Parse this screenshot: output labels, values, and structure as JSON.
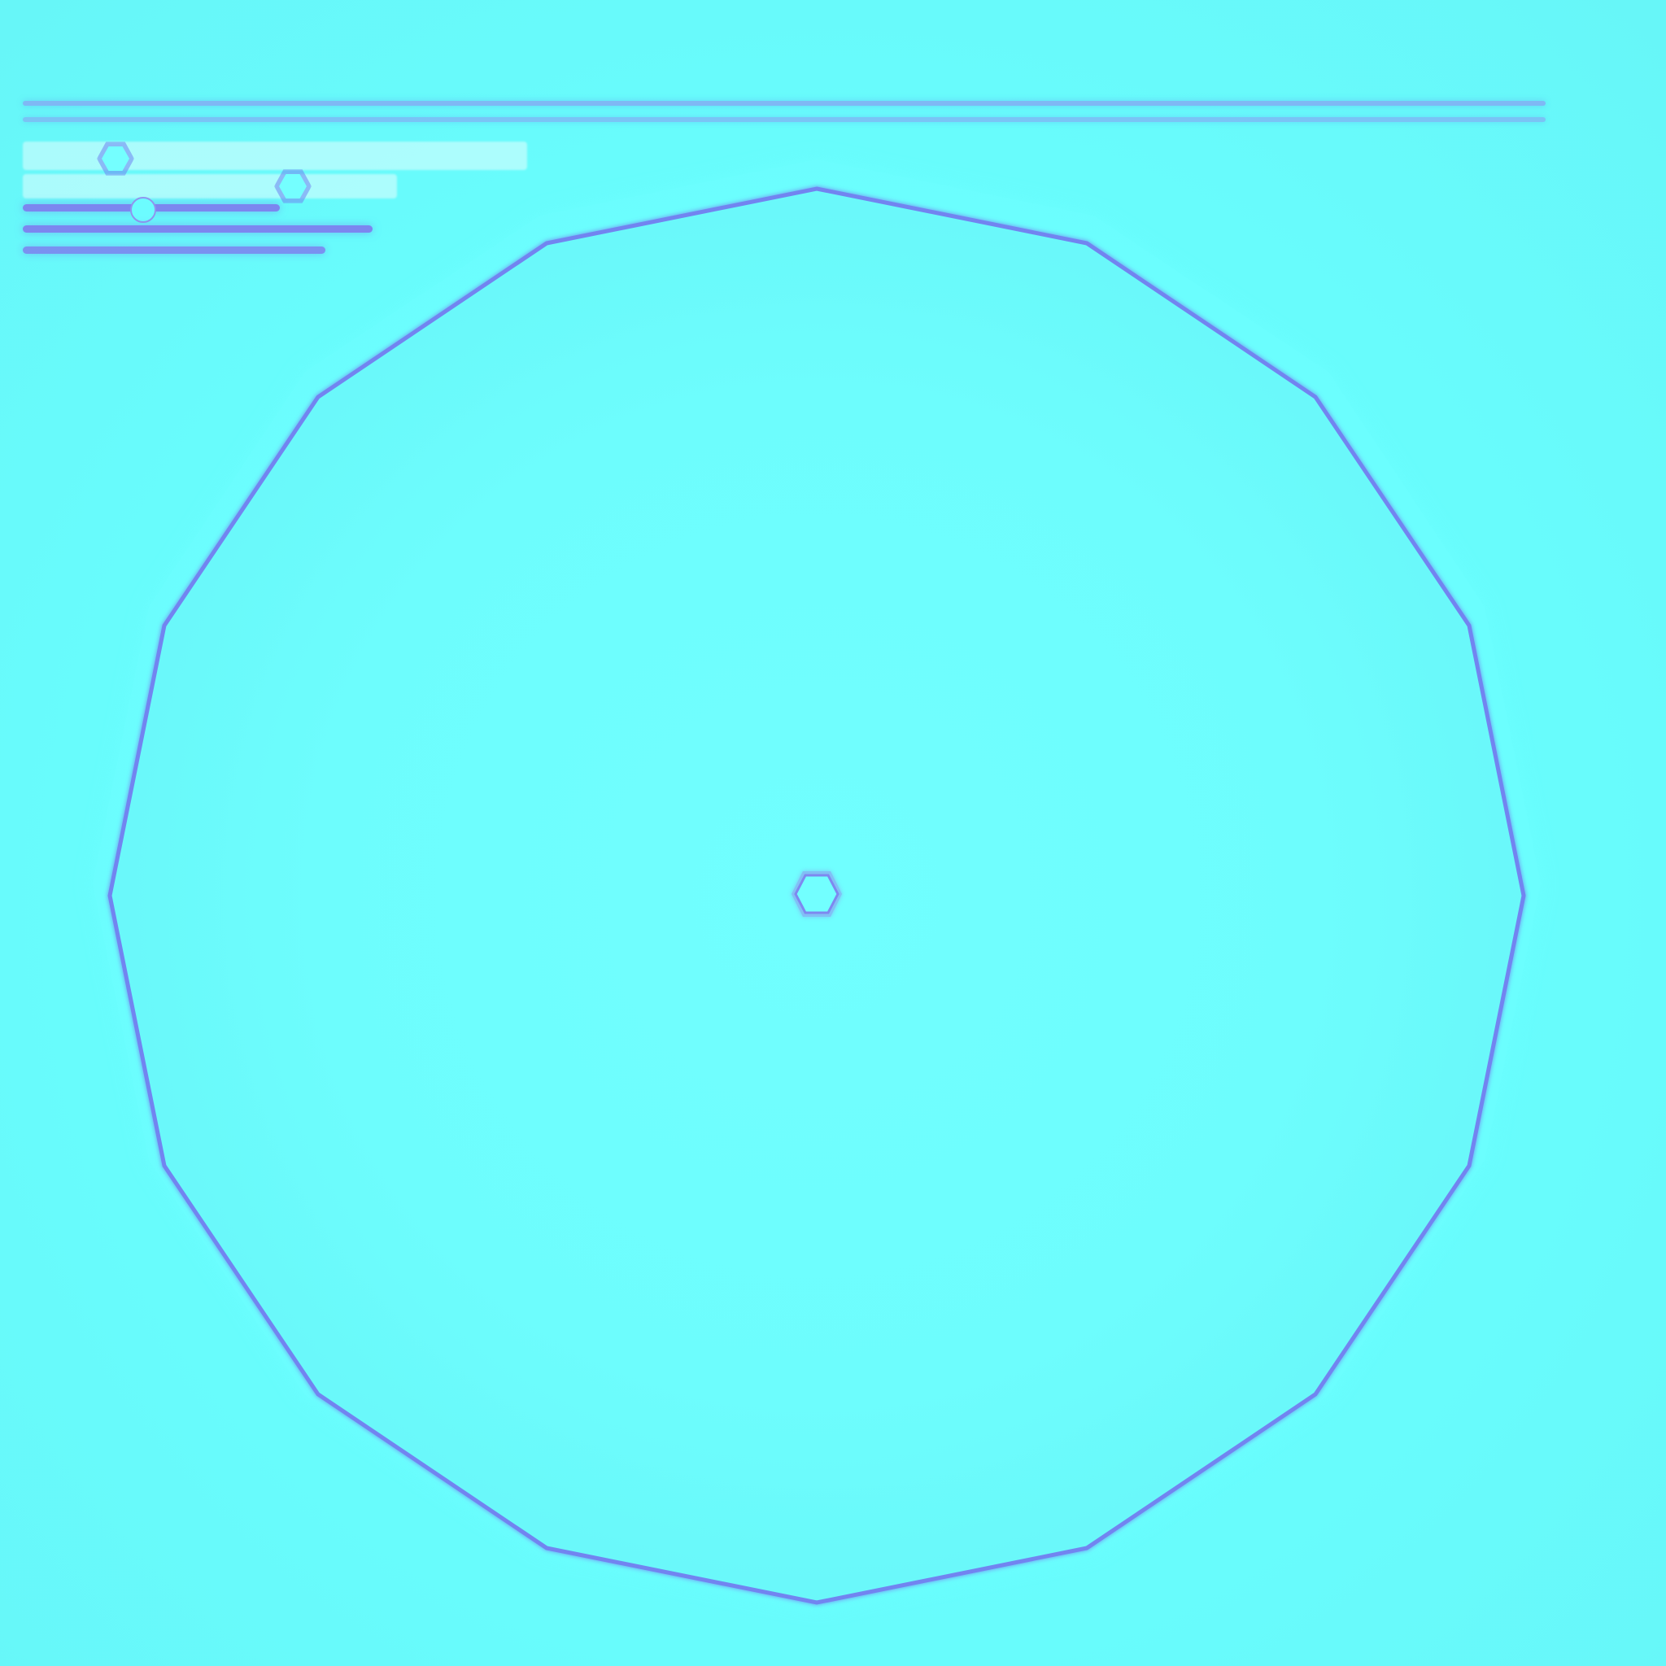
{
  "canvas": {
    "background": "#68f9f9",
    "outline_color": "#7284f0",
    "ring_glow": "#6effff"
  },
  "top_controls": {
    "title_icon": "hexagon-icon",
    "secondary_icon": "hexagon-icon",
    "slider_1": {
      "value": 0.42
    },
    "slider_2": {
      "value": 0.78
    }
  },
  "shape": {
    "type": "polygon",
    "sides": 16,
    "center_icon": "hexagon-icon"
  }
}
